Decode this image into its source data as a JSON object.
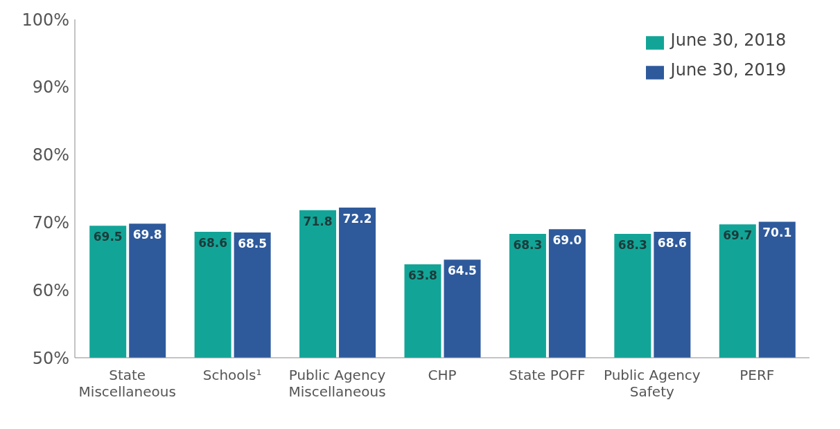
{
  "chart_data": {
    "type": "bar",
    "categories": [
      "State Miscellaneous",
      "Schools¹",
      "Public Agency Miscellaneous",
      "CHP",
      "State POFF",
      "Public Agency Safety",
      "PERF"
    ],
    "series": [
      {
        "name": "June 30, 2018",
        "color": "#12a597",
        "values": [
          69.5,
          68.6,
          71.8,
          63.8,
          68.3,
          68.3,
          69.7
        ],
        "value_labels": [
          "69.5",
          "68.6",
          "71.8",
          "63.8",
          "68.3",
          "68.3",
          "69.7"
        ]
      },
      {
        "name": "June 30, 2019",
        "color": "#2e5a9c",
        "values": [
          69.8,
          68.5,
          72.2,
          64.5,
          69.0,
          68.6,
          70.1
        ],
        "value_labels": [
          "69.8",
          "68.5",
          "72.2",
          "64.5",
          "69.0",
          "68.6",
          "70.1"
        ]
      }
    ],
    "ylim": [
      50,
      100
    ],
    "yticks": [
      {
        "value": 50,
        "label": "50%"
      },
      {
        "value": 60,
        "label": "60%"
      },
      {
        "value": 70,
        "label": "70%"
      },
      {
        "value": 80,
        "label": "80%"
      },
      {
        "value": 90,
        "label": "90%"
      },
      {
        "value": 100,
        "label": "100%"
      }
    ],
    "grid": false,
    "legend": "top right"
  }
}
